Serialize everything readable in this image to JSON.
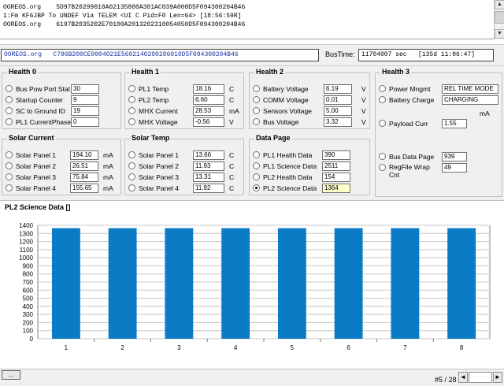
{
  "log": {
    "lines": [
      "OOREOS.org    5D97B20299010A02135800A301AC039A000D5F094300204B46",
      "1:Fm KF6JBP To UNDEF Via TELEM <UI C Pid=F0 Len=64> [18:56:59R]",
      "OOREOS.org    6197B2035202E70100A2013202310054050D5F094300204B46"
    ]
  },
  "header": {
    "packet_source": "OOREOS.org",
    "packet_hex": "C796B200CE0004021E5602140200286010D5F094300204B46",
    "bustime_label": "BusTime:",
    "bustime_value": "11704007 sec   [135d 11:06:47]"
  },
  "groups": {
    "health0": {
      "title": "Health 0",
      "rows": [
        {
          "label": "Bus Pow Port Stat",
          "value": "30",
          "unit": ""
        },
        {
          "label": "Startup Counter",
          "value": "9",
          "unit": ""
        },
        {
          "label": "SC to Ground ID",
          "value": "19",
          "unit": ""
        },
        {
          "label": "PL1 CurrentPhase",
          "value": "0",
          "unit": ""
        }
      ]
    },
    "health1": {
      "title": "Health 1",
      "rows": [
        {
          "label": "PL1 Temp",
          "value": "18.16",
          "unit": "C"
        },
        {
          "label": "PL2 Temp",
          "value": "6.60",
          "unit": "C"
        },
        {
          "label": "MHX Current",
          "value": "28.53",
          "unit": "mA"
        },
        {
          "label": "MHX Voltage",
          "value": "-0.56",
          "unit": "V"
        }
      ]
    },
    "health2": {
      "title": "Health 2",
      "rows": [
        {
          "label": "Battery Voltage",
          "value": "6.19",
          "unit": "V"
        },
        {
          "label": "COMM Voltage",
          "value": "0.01",
          "unit": "V"
        },
        {
          "label": "Sensors Voltage",
          "value": "5.00",
          "unit": "V"
        },
        {
          "label": "Bus Voltage",
          "value": "3.32",
          "unit": "V"
        }
      ]
    },
    "health3": {
      "title": "Health 3",
      "rows": [
        {
          "label": "Power Mngmt",
          "value": "REL TIME MODE"
        },
        {
          "label": "Battery Charge",
          "value": "CHARGING"
        },
        {
          "label": "Payload Curr",
          "value": "1.55",
          "unit": "mA"
        },
        {
          "label": "Bus Data Page",
          "value": "939"
        },
        {
          "label": "RegFile Wrap Cnt",
          "value": "49"
        }
      ]
    },
    "solar_current": {
      "title": "Solar Current",
      "rows": [
        {
          "label": "Solar Panel 1",
          "value": "194.10",
          "unit": "mA"
        },
        {
          "label": "Solar Panel 2",
          "value": "26.51",
          "unit": "mA"
        },
        {
          "label": "Solar Panel 3",
          "value": "75.84",
          "unit": "mA"
        },
        {
          "label": "Solar Panel 4",
          "value": "155.65",
          "unit": "mA"
        }
      ]
    },
    "solar_temp": {
      "title": "Solar Temp",
      "rows": [
        {
          "label": "Solar Panel 1",
          "value": "13.66",
          "unit": "C"
        },
        {
          "label": "Solar Panel 2",
          "value": "11.93",
          "unit": "C"
        },
        {
          "label": "Solar Panel 3",
          "value": "13.31",
          "unit": "C"
        },
        {
          "label": "Solar Panel 4",
          "value": "11.92",
          "unit": "C"
        }
      ]
    },
    "data_page": {
      "title": "Data Page",
      "selected_index": 3,
      "rows": [
        {
          "label": "PL1 Health Data",
          "value": "390"
        },
        {
          "label": "PL1 Science Data",
          "value": "2511"
        },
        {
          "label": "PL2 Health Data",
          "value": "154"
        },
        {
          "label": "PL2 Science Data",
          "value": "1364"
        }
      ]
    }
  },
  "chart_title": "PL2 Science Data []",
  "chart_data": {
    "type": "bar",
    "title": "PL2 Science Data []",
    "categories": [
      "1",
      "2",
      "3",
      "4",
      "5",
      "6",
      "7",
      "8"
    ],
    "values": [
      1364,
      1364,
      1364,
      1364,
      1364,
      1364,
      1364,
      1364
    ],
    "ylim": [
      0,
      1400
    ],
    "yticks": [
      0,
      100,
      200,
      300,
      400,
      500,
      600,
      700,
      800,
      900,
      1000,
      1100,
      1200,
      1300,
      1400
    ],
    "grid": true,
    "bar_color": "#0a7bc4"
  },
  "footer": {
    "status_button": "...",
    "page_label": "#5 / 28",
    "left_arrow": "◄",
    "right_arrow": "►"
  },
  "log_scroll": {
    "up": "▲",
    "down": "▼"
  }
}
